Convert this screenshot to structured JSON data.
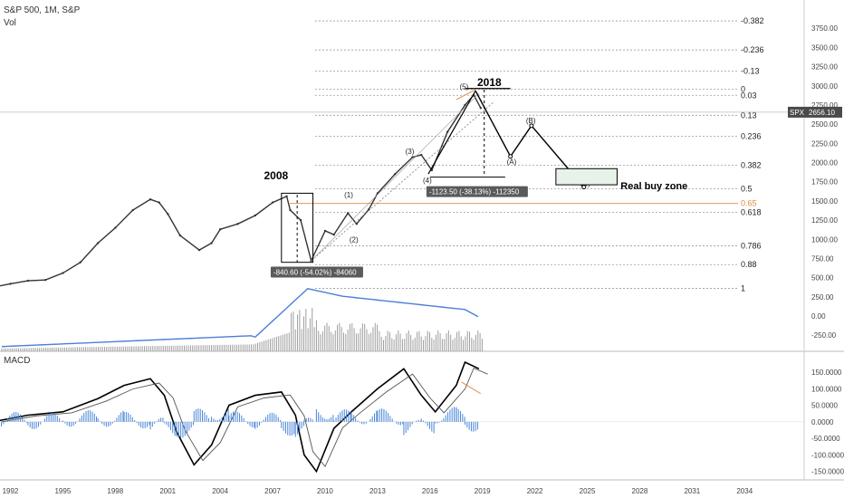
{
  "header": {
    "symbol": "S&P 500, 1M, S&P",
    "vol_label": "Vol"
  },
  "macd_label": "MACD",
  "price_tag": {
    "symbol": "SPX",
    "value": "2656.10"
  },
  "colors": {
    "grid": "#ececec",
    "fib": "#9a9a9a",
    "macd_hist": "#4a86d8",
    "signal": "#000000",
    "vol_bar": "#9e9e9e",
    "vol_ma": "#4a7fd8",
    "orange": "#e08a3c",
    "price_tag_bg": "#4a4a4a"
  },
  "chart_data": [
    {
      "type": "line",
      "name": "price",
      "x": [
        1991,
        1992,
        1993,
        1994,
        1995,
        1996,
        1997,
        1998,
        1999,
        2000,
        2000.5,
        2001,
        2001.7,
        2002.8,
        2003.5,
        2004,
        2005,
        2006,
        2007,
        2007.8,
        2008,
        2008.6,
        2009.2,
        2010,
        2010.5,
        2011.3,
        2011.8,
        2012.5,
        2013,
        2014,
        2015,
        2015.5,
        2016.1,
        2017,
        2018,
        2018.5,
        2018.9
      ],
      "values": [
        375,
        420,
        460,
        470,
        560,
        700,
        950,
        1150,
        1380,
        1520,
        1480,
        1330,
        1050,
        860,
        950,
        1130,
        1200,
        1310,
        1480,
        1560,
        1380,
        1250,
        720,
        1110,
        1060,
        1340,
        1200,
        1390,
        1600,
        1850,
        2070,
        2100,
        1900,
        2400,
        2750,
        2880,
        2710
      ],
      "xlim": [
        1992,
        2037
      ],
      "ylim": [
        -460,
        4000
      ],
      "yticks": [
        "3750.00",
        "3500.00",
        "3250.00",
        "3000.00",
        "2750.00",
        "2500.00",
        "2250.00",
        "2000.00",
        "1750.00",
        "1500.00",
        "1250.00",
        "1000.00",
        "750.00",
        "500.00",
        "250.00",
        "0.00",
        "-250.00"
      ],
      "xticks": [
        "1992",
        "1995",
        "1998",
        "2001",
        "2004",
        "2007",
        "2010",
        "2013",
        "2016",
        "2019",
        "2022",
        "2025",
        "2028",
        "2031",
        "2034"
      ]
    },
    {
      "type": "fibonacci",
      "levels": [
        {
          "label": "-0.382",
          "value": 3846
        },
        {
          "label": "-0.236",
          "value": 3467
        },
        {
          "label": "-0.13",
          "value": 3192
        },
        {
          "label": "0",
          "value": 2954
        },
        {
          "label": "0.03",
          "value": 2876
        },
        {
          "label": "0.13",
          "value": 2616
        },
        {
          "label": "0.236",
          "value": 2341
        },
        {
          "label": "0.382",
          "value": 1963
        },
        {
          "label": "0.5",
          "value": 1656
        },
        {
          "label": "0.618",
          "value": 1350
        },
        {
          "label": "0.65",
          "value": 1467
        },
        {
          "label": "0.786",
          "value": 914
        },
        {
          "label": "0.88",
          "value": 670
        },
        {
          "label": "1",
          "value": 359
        }
      ]
    },
    {
      "type": "annotations",
      "wave_labels": [
        {
          "label": "(1)",
          "x": 2011.4,
          "y": 1580
        },
        {
          "label": "(2)",
          "x": 2011.7,
          "y": 1000
        },
        {
          "label": "(3)",
          "x": 2014.9,
          "y": 2150
        },
        {
          "label": "(4)",
          "x": 2015.9,
          "y": 1770
        },
        {
          "label": "(5)",
          "x": 2018.0,
          "y": 2990
        },
        {
          "label": "(A)",
          "x": 2020.7,
          "y": 2010
        },
        {
          "label": "(B)",
          "x": 2021.8,
          "y": 2550
        },
        {
          "label": "(C)",
          "x": 2024.9,
          "y": 1730
        }
      ],
      "projection": [
        {
          "x": 2018.6,
          "y": 2935
        },
        {
          "x": 2020.6,
          "y": 2080
        },
        {
          "x": 2021.8,
          "y": 2480
        },
        {
          "x": 2024.8,
          "y": 1680
        }
      ],
      "years": [
        {
          "label": "2008",
          "x": 2006.5,
          "y": 1780
        },
        {
          "label": "2018",
          "x": 2018.7,
          "y": 3000
        }
      ],
      "measure_2008": "-840.60 (-54.02%) -84060",
      "measure_2018": "-1123.50 (-38.13%) -112350",
      "buy_zone": "Real buy zone"
    },
    {
      "type": "bar",
      "name": "volume",
      "ylim": [
        -380,
        650
      ],
      "yticks": [
        "250.00",
        "0.00",
        "-250.00"
      ]
    },
    {
      "type": "area",
      "name": "MACD",
      "x": [
        1991,
        1993,
        1995,
        1997,
        1998.5,
        2000,
        2000.8,
        2001.5,
        2002.5,
        2003.5,
        2004.5,
        2006,
        2007.5,
        2008.3,
        2008.8,
        2009.5,
        2010.5,
        2011.5,
        2013,
        2014.5,
        2015.5,
        2016.3,
        2017.5,
        2018,
        2018.8
      ],
      "values": [
        0,
        20,
        30,
        70,
        110,
        130,
        80,
        -30,
        -130,
        -70,
        50,
        80,
        90,
        20,
        -100,
        -150,
        -20,
        30,
        100,
        160,
        80,
        30,
        110,
        180,
        160
      ],
      "ylim": [
        -170,
        180
      ],
      "yticks": [
        "150.0000",
        "100.0000",
        "50.0000",
        "0.0000",
        "-50.0000",
        "-100.0000",
        "-150.0000"
      ]
    }
  ]
}
